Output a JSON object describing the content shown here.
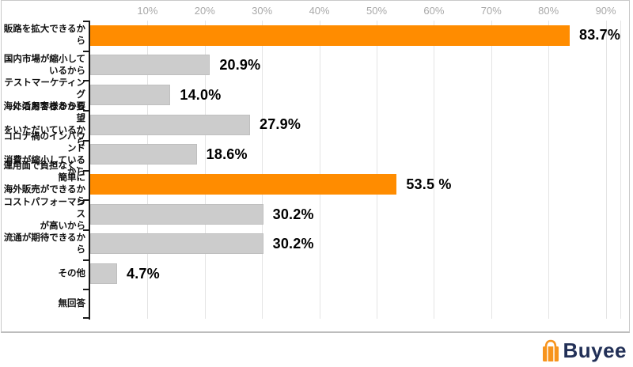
{
  "chart_data": {
    "type": "bar",
    "orientation": "horizontal",
    "title": "",
    "unit": "%",
    "xlim": [
      0,
      92.5
    ],
    "grid": true,
    "axis_ticks": [
      "10%",
      "20%",
      "30%",
      "40%",
      "50%",
      "60%",
      "70%",
      "80%",
      "90%"
    ],
    "categories": [
      {
        "label_lines": [
          "販路を拡大できるから"
        ],
        "value": 83.7,
        "value_label": "83.7%",
        "highlight": true
      },
      {
        "label_lines": [
          "国内市場が縮小して",
          "いるから"
        ],
        "value": 20.9,
        "value_label": "20.9%",
        "highlight": false
      },
      {
        "label_lines": [
          "テストマーケティング",
          "に活用できるから"
        ],
        "value": 14.0,
        "value_label": "14.0%",
        "highlight": false
      },
      {
        "label_lines": [
          "海外のお客様から要望",
          "をいただいているから"
        ],
        "value": 27.9,
        "value_label": "27.9%",
        "highlight": false
      },
      {
        "label_lines": [
          "コロナ禍のインバウンド",
          "消費が縮小しているから"
        ],
        "value": 18.6,
        "value_label": "18.6%",
        "highlight": false
      },
      {
        "label_lines": [
          "運用面で負担なく、簡単に",
          "海外販売ができるから"
        ],
        "value": 53.5,
        "value_label": "53.5 %",
        "highlight": true
      },
      {
        "label_lines": [
          "コストパフォーマンス",
          "が高いから"
        ],
        "value": 30.2,
        "value_label": "30.2%",
        "highlight": false
      },
      {
        "label_lines": [
          "流通が期待できるから"
        ],
        "value": 30.2,
        "value_label": "30.2%",
        "highlight": false
      },
      {
        "label_lines": [
          "その他"
        ],
        "value": 4.7,
        "value_label": "4.7%",
        "highlight": false
      },
      {
        "label_lines": [
          "無回答"
        ],
        "value": 0,
        "value_label": "",
        "highlight": false
      }
    ],
    "colors": {
      "highlight_bar": "#FF8C00",
      "normal_bar": "#CCCCCC",
      "axis": "#1a1a1a",
      "gridline": "#e4e4e4",
      "tick_label": "#a9a9a9",
      "value_label": "#000000"
    }
  },
  "branding": {
    "logo_text": "Buyee",
    "logo_icon": "shopping-bag-icon",
    "logo_text_color": "#223057",
    "logo_icon_color": "#F7941D"
  }
}
